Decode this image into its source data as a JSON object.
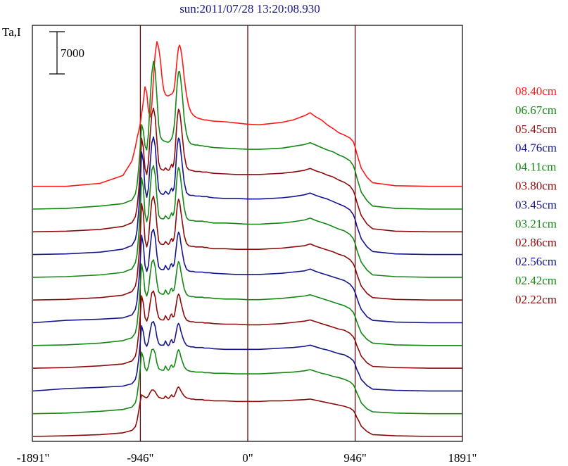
{
  "chart_data": {
    "type": "line",
    "title": "sun:2011/07/28 13:20:08.930",
    "ylabel": "Ta,I",
    "scale_bar_label": "7000",
    "scale_bar_value": 7000,
    "x_ticks": [
      {
        "value": -1891,
        "label": "-1891\""
      },
      {
        "value": -946,
        "label": "-946\""
      },
      {
        "value": 0,
        "label": "0\""
      },
      {
        "value": 946,
        "label": "946\""
      },
      {
        "value": 1891,
        "label": "1891\""
      }
    ],
    "xlim": [
      -1891,
      1891
    ],
    "vertical_lines": [
      -946,
      0,
      946
    ],
    "grid": false,
    "legend_position": "right",
    "x_samples": [
      -1891,
      -1600,
      -1300,
      -1100,
      -1020,
      -990,
      -975,
      -960,
      -946,
      -935,
      -920,
      -905,
      -890,
      -875,
      -860,
      -845,
      -830,
      -815,
      -800,
      -785,
      -770,
      -755,
      -740,
      -725,
      -710,
      -700,
      -690,
      -680,
      -670,
      -660,
      -650,
      -640,
      -630,
      -620,
      -610,
      -600,
      -590,
      -575,
      -560,
      -540,
      -520,
      -500,
      -480,
      -460,
      -440,
      -420,
      -400,
      -380,
      -360,
      -340,
      -300,
      -200,
      -100,
      0,
      100,
      200,
      300,
      400,
      500,
      550,
      600,
      650,
      700,
      750,
      800,
      850,
      900,
      930,
      946,
      960,
      980,
      1000,
      1050,
      1100,
      1300,
      1600,
      1891
    ],
    "series": [
      {
        "name": "08.40cm",
        "color": "#ff1a1a",
        "baseline": 0.0,
        "values": [
          0,
          0,
          500,
          1800,
          4200,
          6500,
          8000,
          9200,
          10500,
          12000,
          14000,
          16500,
          15500,
          12500,
          11500,
          13500,
          18000,
          22000,
          24000,
          23000,
          21000,
          18000,
          16000,
          15200,
          15000,
          15000,
          15100,
          15200,
          15300,
          15500,
          16000,
          17500,
          19500,
          21500,
          23000,
          23400,
          22800,
          20800,
          18000,
          15200,
          13300,
          12300,
          11800,
          11500,
          11300,
          11200,
          11100,
          11000,
          11000,
          10900,
          10800,
          10700,
          10500,
          10300,
          10200,
          10400,
          10600,
          11000,
          11700,
          12200,
          11500,
          11000,
          10200,
          9600,
          8900,
          8500,
          8000,
          7400,
          6500,
          5500,
          4200,
          3000,
          1500,
          600,
          100,
          0,
          0
        ]
      },
      {
        "name": "06.67cm",
        "color": "#138813",
        "baseline": 0.0,
        "values": [
          0,
          100,
          500,
          900,
          1500,
          2500,
          4000,
          7000,
          10500,
          14000,
          13000,
          10500,
          9800,
          12500,
          18000,
          22500,
          24500,
          23000,
          18500,
          14000,
          12000,
          11500,
          11300,
          11200,
          11100,
          11100,
          11200,
          11400,
          11700,
          12300,
          13500,
          15500,
          18500,
          21200,
          22700,
          22800,
          21500,
          18500,
          15000,
          12500,
          11300,
          10800,
          10700,
          10600,
          10600,
          10500,
          10500,
          10400,
          10400,
          10300,
          10200,
          10100,
          10000,
          9900,
          9900,
          10000,
          10100,
          10400,
          10700,
          11000,
          10600,
          10200,
          9800,
          9500,
          9000,
          8600,
          8000,
          7200,
          6300,
          5300,
          4000,
          2800,
          1400,
          500,
          100,
          0,
          0
        ]
      },
      {
        "name": "05.45cm",
        "color": "#8c0a0a",
        "baseline": 0.0,
        "values": [
          0,
          100,
          400,
          900,
          1500,
          2500,
          4000,
          7000,
          11000,
          15500,
          14000,
          10500,
          9500,
          11500,
          16000,
          19500,
          20500,
          19000,
          15000,
          11500,
          10500,
          10300,
          10200,
          10600,
          10300,
          10200,
          10300,
          10800,
          11200,
          10700,
          11500,
          13500,
          16500,
          19000,
          20300,
          20000,
          18500,
          15500,
          12800,
          10800,
          10300,
          10200,
          10100,
          10000,
          10000,
          10000,
          9900,
          9900,
          9900,
          9800,
          9700,
          9600,
          9500,
          9500,
          9500,
          9600,
          9700,
          9900,
          10200,
          10500,
          10100,
          9800,
          9400,
          9100,
          8600,
          8200,
          7600,
          6800,
          6000,
          5000,
          3800,
          2700,
          1300,
          500,
          100,
          0,
          0
        ]
      },
      {
        "name": "04.76cm",
        "color": "#14148c",
        "baseline": 0.0,
        "values": [
          0,
          100,
          400,
          900,
          1500,
          2500,
          4000,
          7500,
          12000,
          17000,
          15500,
          11000,
          9500,
          11000,
          15000,
          18500,
          19500,
          18000,
          14000,
          10800,
          10200,
          10000,
          10000,
          10500,
          10200,
          10000,
          10200,
          10700,
          11000,
          10500,
          11000,
          12800,
          15800,
          18200,
          19300,
          19000,
          17200,
          14500,
          12000,
          10300,
          9900,
          9800,
          9800,
          9700,
          9700,
          9700,
          9600,
          9600,
          9600,
          9500,
          9400,
          9300,
          9300,
          9200,
          9200,
          9300,
          9400,
          9600,
          9900,
          10200,
          9800,
          9500,
          9200,
          8800,
          8400,
          8000,
          7400,
          6600,
          5800,
          4800,
          3700,
          2600,
          1300,
          500,
          100,
          0,
          0
        ]
      },
      {
        "name": "04.11cm",
        "color": "#138813",
        "baseline": 0.0,
        "values": [
          0,
          100,
          400,
          800,
          1400,
          2400,
          3800,
          7200,
          11500,
          16500,
          15000,
          10500,
          9200,
          10500,
          14500,
          17800,
          18500,
          17000,
          13200,
          10300,
          9800,
          9700,
          9700,
          10200,
          9900,
          9700,
          9800,
          10300,
          10700,
          10200,
          10700,
          12300,
          15000,
          17300,
          18200,
          17800,
          16200,
          13800,
          11500,
          9900,
          9500,
          9400,
          9400,
          9300,
          9300,
          9300,
          9300,
          9200,
          9200,
          9100,
          9000,
          9000,
          8900,
          8800,
          8800,
          8900,
          9000,
          9200,
          9500,
          9800,
          9400,
          9100,
          8800,
          8400,
          8000,
          7700,
          7100,
          6400,
          5600,
          4600,
          3500,
          2500,
          1200,
          400,
          100,
          0,
          0
        ]
      },
      {
        "name": "03.80cm",
        "color": "#8c0a0a",
        "baseline": 0.0,
        "values": [
          0,
          100,
          400,
          800,
          1400,
          2300,
          3700,
          7000,
          11000,
          16000,
          14500,
          10000,
          8800,
          10000,
          13500,
          16500,
          17200,
          15800,
          12300,
          9800,
          9300,
          9200,
          9200,
          9700,
          9400,
          9200,
          9400,
          9900,
          10200,
          9700,
          10200,
          11500,
          13800,
          15800,
          16700,
          16300,
          14800,
          12700,
          10700,
          9400,
          9000,
          8900,
          8900,
          8800,
          8800,
          8800,
          8800,
          8700,
          8700,
          8600,
          8500,
          8500,
          8400,
          8400,
          8400,
          8500,
          8600,
          8800,
          9000,
          9300,
          8900,
          8600,
          8300,
          8000,
          7600,
          7300,
          6700,
          6000,
          5300,
          4400,
          3300,
          2300,
          1100,
          400,
          100,
          0,
          0
        ]
      },
      {
        "name": "03.45cm",
        "color": "#14148c",
        "baseline": 0.0,
        "values": [
          0,
          400,
          600,
          800,
          1300,
          2200,
          3600,
          6800,
          10500,
          14500,
          13000,
          9500,
          8500,
          9500,
          12500,
          15000,
          15500,
          14200,
          11200,
          9300,
          8900,
          8800,
          8800,
          9500,
          9000,
          8800,
          9000,
          9600,
          9800,
          9300,
          9600,
          10800,
          12500,
          14200,
          15000,
          14700,
          13300,
          11500,
          9900,
          8900,
          8600,
          8500,
          8500,
          8400,
          8400,
          8400,
          8400,
          8300,
          8300,
          8300,
          8200,
          8100,
          8000,
          8000,
          8000,
          8100,
          8200,
          8400,
          8600,
          8900,
          8500,
          8200,
          7900,
          7600,
          7300,
          7000,
          6400,
          5700,
          5000,
          4200,
          3100,
          2200,
          1000,
          400,
          100,
          0,
          0
        ]
      },
      {
        "name": "03.21cm",
        "color": "#138813",
        "baseline": 0.0,
        "values": [
          0,
          100,
          400,
          800,
          1300,
          2100,
          3500,
          6500,
          10000,
          13500,
          12000,
          9000,
          8200,
          9200,
          11800,
          13800,
          14200,
          13000,
          10500,
          8900,
          8600,
          8500,
          8500,
          9200,
          8700,
          8500,
          8700,
          9300,
          9500,
          9000,
          9200,
          10200,
          11700,
          13200,
          13900,
          13600,
          12400,
          10800,
          9400,
          8500,
          8200,
          8100,
          8100,
          8000,
          8000,
          8000,
          8000,
          7900,
          7900,
          7900,
          7800,
          7700,
          7700,
          7600,
          7600,
          7700,
          7800,
          8000,
          8200,
          8400,
          8100,
          7800,
          7500,
          7200,
          6900,
          6600,
          6100,
          5500,
          4800,
          4000,
          3000,
          2100,
          1000,
          400,
          100,
          0,
          0
        ]
      },
      {
        "name": "02.86cm",
        "color": "#8c0a0a",
        "baseline": 0.0,
        "values": [
          0,
          100,
          400,
          700,
          1200,
          2000,
          3300,
          6000,
          9000,
          12000,
          10800,
          8400,
          7800,
          8700,
          10800,
          12500,
          12800,
          11800,
          9600,
          8400,
          8100,
          8000,
          8000,
          8700,
          8200,
          8000,
          8200,
          8800,
          9000,
          8500,
          8600,
          9400,
          10600,
          11800,
          12300,
          12000,
          11000,
          9800,
          8700,
          8000,
          7800,
          7700,
          7700,
          7600,
          7600,
          7600,
          7600,
          7500,
          7500,
          7500,
          7400,
          7300,
          7300,
          7200,
          7200,
          7300,
          7400,
          7600,
          7800,
          8000,
          7700,
          7400,
          7100,
          6800,
          6500,
          6300,
          5800,
          5200,
          4600,
          3800,
          2900,
          2000,
          900,
          300,
          100,
          0,
          0
        ]
      },
      {
        "name": "02.56cm",
        "color": "#14148c",
        "baseline": 0.0,
        "values": [
          0,
          400,
          600,
          800,
          1200,
          1900,
          3100,
          5500,
          8200,
          10800,
          9800,
          7900,
          7400,
          8200,
          10000,
          11300,
          11500,
          10700,
          8900,
          7900,
          7600,
          7600,
          7600,
          8300,
          7700,
          7500,
          7700,
          8300,
          8500,
          8000,
          8100,
          8800,
          9800,
          10800,
          11200,
          10900,
          10000,
          9000,
          8200,
          7600,
          7400,
          7300,
          7300,
          7200,
          7200,
          7200,
          7200,
          7100,
          7100,
          7100,
          7000,
          6900,
          6900,
          6900,
          6900,
          7000,
          7100,
          7200,
          7400,
          7600,
          7300,
          7000,
          6800,
          6500,
          6200,
          6000,
          5500,
          5000,
          4400,
          3600,
          2800,
          1900,
          900,
          300,
          100,
          0,
          0
        ]
      },
      {
        "name": "02.42cm",
        "color": "#138813",
        "baseline": 0.0,
        "values": [
          0,
          100,
          400,
          700,
          1100,
          1800,
          3000,
          5200,
          7800,
          10200,
          9300,
          7600,
          7100,
          7800,
          9400,
          10600,
          10700,
          10000,
          8400,
          7500,
          7300,
          7200,
          7200,
          7900,
          7400,
          7200,
          7400,
          7900,
          8100,
          7700,
          7800,
          8400,
          9300,
          10200,
          10600,
          10300,
          9500,
          8600,
          7800,
          7300,
          7100,
          7000,
          7000,
          6900,
          6900,
          6900,
          6900,
          6800,
          6800,
          6800,
          6700,
          6700,
          6600,
          6600,
          6600,
          6700,
          6800,
          6900,
          7100,
          7300,
          7000,
          6700,
          6500,
          6200,
          6000,
          5700,
          5300,
          4800,
          4200,
          3500,
          2700,
          1800,
          800,
          300,
          100,
          0,
          0
        ]
      },
      {
        "name": "02.22cm",
        "color": "#8c0a0a",
        "baseline": 0.0,
        "values": [
          0,
          100,
          300,
          600,
          1000,
          1600,
          2600,
          4300,
          5900,
          6900,
          6700,
          6500,
          6400,
          6700,
          7300,
          7700,
          7700,
          7400,
          6900,
          6500,
          6400,
          6300,
          6300,
          6700,
          6400,
          6300,
          6400,
          6700,
          6900,
          6600,
          6600,
          7000,
          7500,
          8000,
          8200,
          8000,
          7600,
          7100,
          6700,
          6400,
          6300,
          6200,
          6200,
          6100,
          6100,
          6100,
          6100,
          6000,
          6000,
          6000,
          5900,
          5900,
          5800,
          5800,
          5800,
          5900,
          5900,
          6000,
          6100,
          6200,
          6000,
          5800,
          5600,
          5400,
          5200,
          5000,
          4700,
          4300,
          3800,
          3200,
          2500,
          1700,
          800,
          300,
          100,
          0,
          0
        ]
      }
    ]
  }
}
